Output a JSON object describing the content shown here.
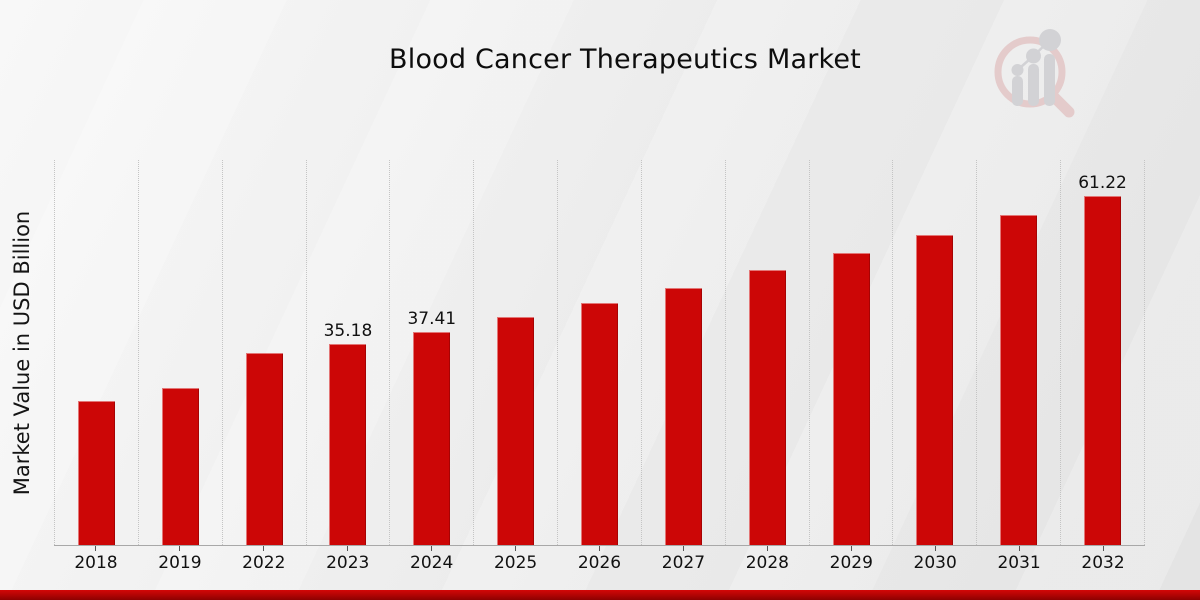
{
  "page": {
    "title": "Blood Cancer Therapeutics Market",
    "logo_icon": "mrfr-growth-magnifier-logo",
    "background_color": "#ebebeb",
    "accent_band_color": "#b30505"
  },
  "chart_data": {
    "type": "bar",
    "title": "Blood Cancer Therapeutics Market",
    "xlabel": "",
    "ylabel": "Market Value in USD Billion",
    "categories": [
      "2018",
      "2019",
      "2022",
      "2023",
      "2024",
      "2025",
      "2026",
      "2027",
      "2028",
      "2029",
      "2030",
      "2031",
      "2032"
    ],
    "values": [
      25.3,
      27.6,
      33.6,
      35.18,
      37.41,
      39.9,
      42.5,
      45.1,
      48.3,
      51.2,
      54.4,
      57.9,
      61.22
    ],
    "bar_labels": [
      "",
      "",
      "",
      "35.18",
      "37.41",
      "",
      "",
      "",
      "",
      "",
      "",
      "",
      "61.22"
    ],
    "labeled_points": [
      {
        "category": "2023",
        "value": 35.18
      },
      {
        "category": "2024",
        "value": 37.41
      },
      {
        "category": "2032",
        "value": 61.22
      }
    ],
    "ylim": [
      0,
      67.5
    ],
    "bar_color": "#cc0606",
    "grid": "vertical-dotted",
    "gridline_color": "#c4c4c4",
    "axis_line_color": "#a8a8a8",
    "legend": "none"
  }
}
